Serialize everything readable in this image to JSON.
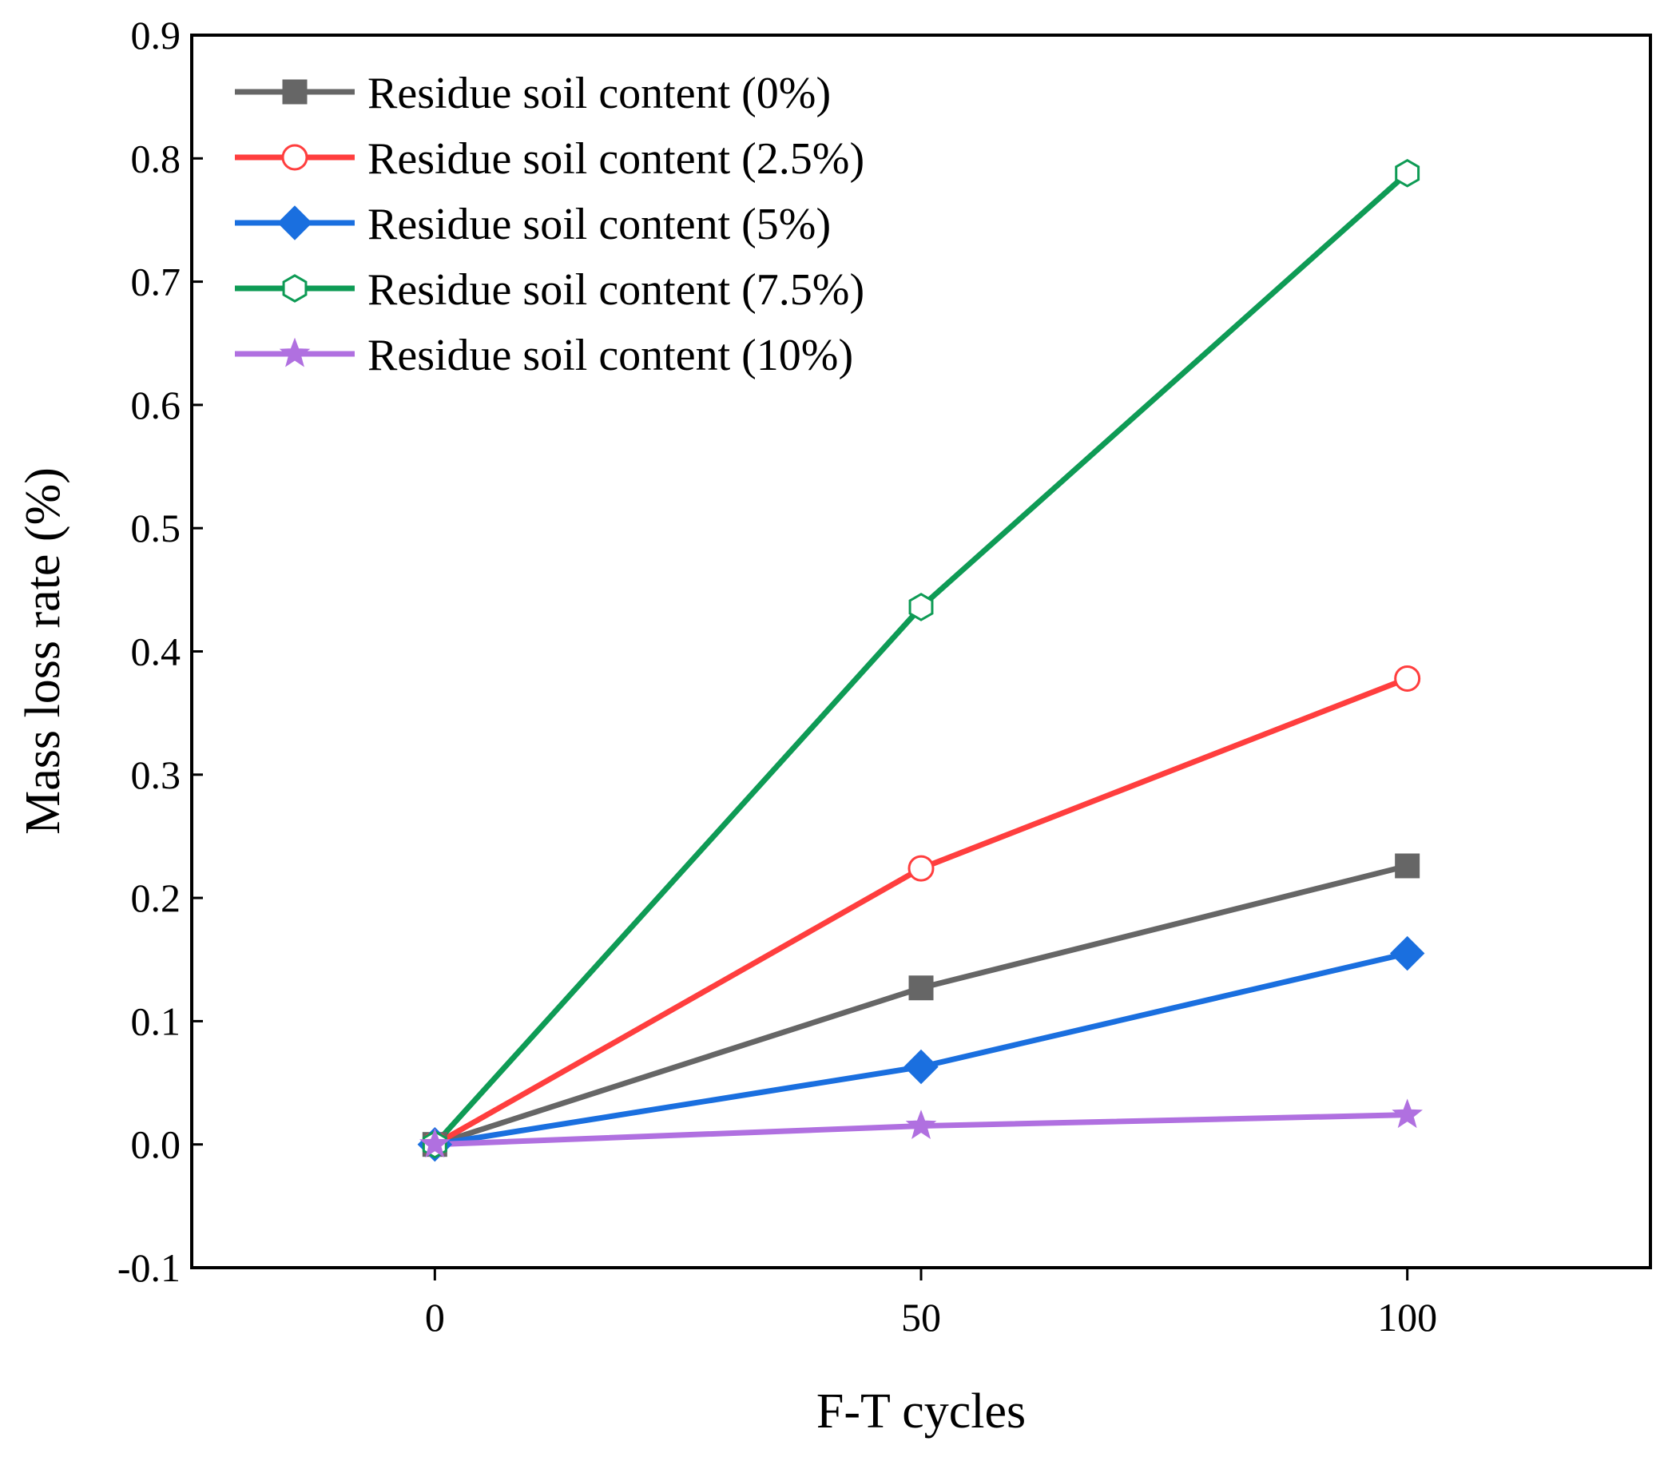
{
  "chart_data": {
    "type": "line",
    "xlabel": "F-T cycles",
    "ylabel": "Mass loss rate (%)",
    "x": [
      0,
      50,
      100
    ],
    "xlim": [
      -25,
      125
    ],
    "ylim": [
      -0.1,
      0.9
    ],
    "x_ticks": [
      "0",
      "50",
      "100"
    ],
    "y_ticks": [
      "-0.1",
      "0.0",
      "0.1",
      "0.2",
      "0.3",
      "0.4",
      "0.5",
      "0.6",
      "0.7",
      "0.8",
      "0.9"
    ],
    "grid": false,
    "legend_position": "top-left",
    "series": [
      {
        "name": "Residue soil content (0%)",
        "values": [
          0.0,
          0.127,
          0.226
        ],
        "color": "#666666",
        "marker": "square",
        "filled": true
      },
      {
        "name": "Residue soil content (2.5%)",
        "values": [
          0.0,
          0.224,
          0.378
        ],
        "color": "#ff3e3e",
        "marker": "circle",
        "filled": false
      },
      {
        "name": "Residue soil content (5%)",
        "values": [
          0.0,
          0.063,
          0.155
        ],
        "color": "#1a6fdf",
        "marker": "diamond",
        "filled": true
      },
      {
        "name": "Residue soil content (7.5%)",
        "values": [
          0.0,
          0.436,
          0.788
        ],
        "color": "#0e9b55",
        "marker": "hexagon",
        "filled": false
      },
      {
        "name": "Residue soil content (10%)",
        "values": [
          0.0,
          0.015,
          0.024
        ],
        "color": "#b070e0",
        "marker": "star",
        "filled": true
      }
    ]
  }
}
